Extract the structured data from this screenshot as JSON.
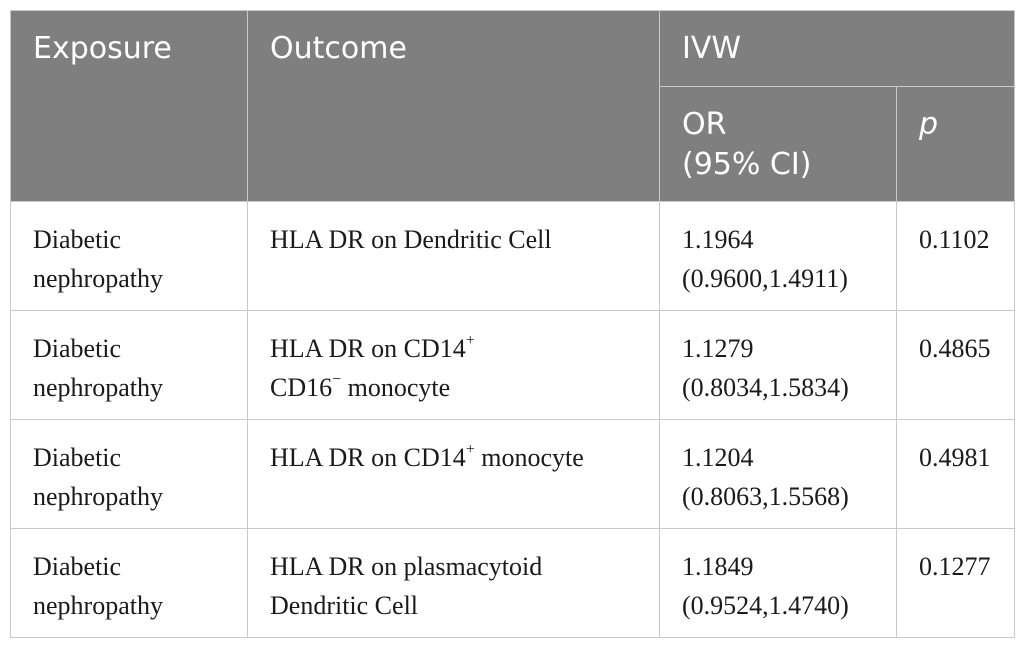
{
  "headers": {
    "exposure": "Exposure",
    "outcome": "Outcome",
    "ivw": "IVW",
    "or_line1": "OR",
    "or_line2": "(95% CI)",
    "p": "p"
  },
  "rows": [
    {
      "exposure_l1": "Diabetic",
      "exposure_l2": "nephropathy",
      "outcome_l1_pre": "HLA DR on Dendritic Cell",
      "outcome_l1_sup": "",
      "outcome_l1_post": "",
      "outcome_l2_pre": "",
      "outcome_l2_sup": "",
      "outcome_l2_post": "",
      "or": "1.1964",
      "ci": "(0.9600,1.4911)",
      "p": "0.1102"
    },
    {
      "exposure_l1": "Diabetic",
      "exposure_l2": "nephropathy",
      "outcome_l1_pre": "HLA DR on CD14",
      "outcome_l1_sup": "+",
      "outcome_l1_post": "",
      "outcome_l2_pre": "CD16",
      "outcome_l2_sup": "−",
      "outcome_l2_post": " monocyte",
      "or": "1.1279",
      "ci": "(0.8034,1.5834)",
      "p": "0.4865"
    },
    {
      "exposure_l1": "Diabetic",
      "exposure_l2": "nephropathy",
      "outcome_l1_pre": "HLA DR on CD14",
      "outcome_l1_sup": "+",
      "outcome_l1_post": " monocyte",
      "outcome_l2_pre": "",
      "outcome_l2_sup": "",
      "outcome_l2_post": "",
      "or": "1.1204",
      "ci": "(0.8063,1.5568)",
      "p": "0.4981"
    },
    {
      "exposure_l1": "Diabetic",
      "exposure_l2": "nephropathy",
      "outcome_l1_pre": "HLA DR on plasmacytoid",
      "outcome_l1_sup": "",
      "outcome_l1_post": "",
      "outcome_l2_pre": "Dendritic Cell",
      "outcome_l2_sup": "",
      "outcome_l2_post": "",
      "or": "1.1849",
      "ci": "(0.9524,1.4740)",
      "p": "0.1277"
    }
  ],
  "colors": {
    "header_bg": "#7f7f7f",
    "header_text": "#ffffff",
    "border": "#c9c9c9"
  }
}
